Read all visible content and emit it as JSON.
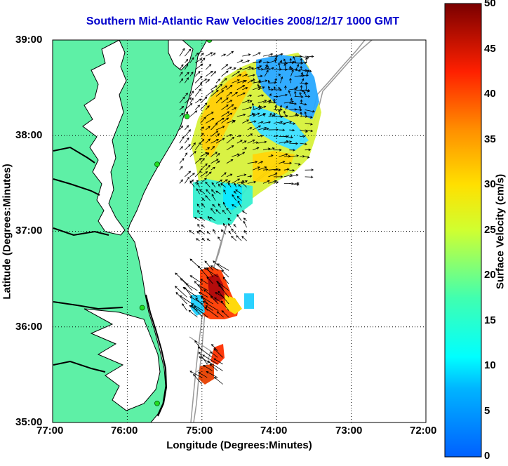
{
  "title": "Southern Mid-Atlantic Raw Velocities 2008/12/17 1000 GMT",
  "xlabel": "Longitude (Degrees:Minutes)",
  "ylabel": "Latitude (Degrees:Minutes)",
  "colorbar_label": "Surface Velocity (cm/s)",
  "x_ticks": [
    "77:00",
    "76:00",
    "75:00",
    "74:00",
    "73:00",
    "72:00"
  ],
  "y_ticks": [
    "39:00",
    "38:00",
    "37:00",
    "36:00",
    "35:00"
  ],
  "colorbar_ticks": [
    "50",
    "45",
    "40",
    "35",
    "30",
    "25",
    "20",
    "15",
    "10",
    "5",
    "0"
  ],
  "colors": {
    "land": "#5ef0a6",
    "water": "#ffffff",
    "coastline": "#000000",
    "bathymetry": "#999999",
    "station": "#22dd22",
    "title": "#0000cc"
  },
  "chart_data": {
    "type": "heatmap",
    "title": "Southern Mid-Atlantic Raw Velocities 2008/12/17 1000 GMT",
    "xlabel": "Longitude (Degrees:Minutes)",
    "ylabel": "Latitude (Degrees:Minutes)",
    "xlim": [
      -77,
      -72
    ],
    "ylim": [
      35,
      39
    ],
    "colorbar": {
      "label": "Surface Velocity (cm/s)",
      "range": [
        0,
        50
      ],
      "colormap": "jet"
    },
    "grid": true,
    "regions": [
      {
        "lon_range": [
          -75.3,
          -73.6
        ],
        "lat_range": [
          37.5,
          38.9
        ],
        "typical_speed": 22
      },
      {
        "lon_range": [
          -74.3,
          -73.6
        ],
        "lat_range": [
          38.2,
          38.8
        ],
        "typical_speed": 8
      },
      {
        "lon_range": [
          -75.1,
          -74.4
        ],
        "lat_range": [
          36.9,
          37.5
        ],
        "typical_speed": 15
      },
      {
        "lon_range": [
          -75.2,
          -74.6
        ],
        "lat_range": [
          36.1,
          36.6
        ],
        "typical_speed": 40
      },
      {
        "lon_range": [
          -75.0,
          -74.7
        ],
        "lat_range": [
          35.4,
          35.8
        ],
        "typical_speed": 42
      }
    ],
    "stations": [
      {
        "lon": -74.9,
        "lat": 39.0
      },
      {
        "lon": -75.2,
        "lat": 38.2
      },
      {
        "lon": -75.6,
        "lat": 37.7
      },
      {
        "lon": -75.8,
        "lat": 36.2
      },
      {
        "lon": -75.6,
        "lat": 35.2
      }
    ]
  }
}
